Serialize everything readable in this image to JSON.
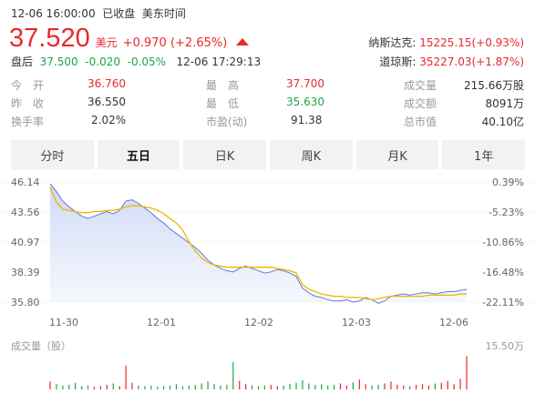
{
  "header": {
    "datetime": "12-06 16:00:00",
    "status": "已收盘",
    "timezone": "美东时间",
    "price": "37.520",
    "currency": "美元",
    "change": "+0.970 (+2.65%)",
    "after_label": "盘后",
    "after_price": "37.500",
    "after_change": "-0.020",
    "after_pct": "-0.05%",
    "after_time": "12-06 17:29:13"
  },
  "indices": [
    {
      "label": "纳斯达克:",
      "value": "15225.15(+0.93%)"
    },
    {
      "label": "道琼斯:",
      "value": "35227.03(+1.87%)"
    }
  ],
  "stats": {
    "open_label": "今　开",
    "open": "36.760",
    "prev_label": "昨　收",
    "prev": "36.550",
    "turnover_label": "换手率",
    "turnover": "2.02%",
    "high_label": "最　高",
    "high": "37.700",
    "low_label": "最　低",
    "low": "35.630",
    "pe_label": "市盈(动)",
    "pe": "91.38",
    "volume_label": "成交量",
    "volume": "215.66万股",
    "amount_label": "成交额",
    "amount": "8091万",
    "mktcap_label": "总市值",
    "mktcap": "40.10亿"
  },
  "tabs": [
    "分时",
    "五日",
    "日K",
    "周K",
    "月K",
    "1年"
  ],
  "active_tab": "五日",
  "colors": {
    "up": "#e8282d",
    "down": "#1ba849",
    "price_line": "#5b7bd5",
    "avg_line": "#f0b400"
  },
  "volume_label": "成交量（股）",
  "volume_max": "15.50万",
  "chart_data": {
    "type": "line",
    "x_ticks": [
      "11-30",
      "12-01",
      "12-02",
      "12-03",
      "12-06"
    ],
    "y_ticks": [
      "46.14",
      "43.56",
      "40.97",
      "38.39",
      "35.80"
    ],
    "pct_ticks": [
      "0.39%",
      "-5.23%",
      "-10.86%",
      "-16.48%",
      "-22.11%"
    ],
    "ylim": [
      35.8,
      46.14
    ],
    "series": [
      {
        "values": [
          46.0,
          45.3,
          44.5,
          44.0,
          43.6,
          43.2,
          43.0,
          43.2,
          43.4,
          43.6,
          43.4,
          43.7,
          44.5,
          44.6,
          44.3,
          43.9,
          43.5,
          43.0,
          42.6,
          42.1,
          41.7,
          41.3,
          40.9,
          40.5,
          40.0,
          39.4,
          39.0,
          38.7,
          38.5,
          38.4,
          38.7,
          38.9,
          38.7,
          38.5,
          38.3,
          38.4,
          38.6,
          38.5,
          38.3,
          38.0,
          37.0,
          36.6,
          36.3,
          36.2,
          36.0,
          35.9,
          35.9,
          36.0,
          35.8,
          35.9,
          36.2,
          36.0,
          35.7,
          35.9,
          36.3,
          36.4,
          36.5,
          36.4,
          36.5,
          36.6,
          36.6,
          36.5,
          36.6,
          36.7,
          36.7,
          36.8,
          36.9
        ]
      },
      {
        "values": [
          45.7,
          44.4,
          43.8,
          43.7,
          43.6,
          43.5,
          43.5,
          43.6,
          43.6,
          43.7,
          43.7,
          43.8,
          44.0,
          44.1,
          44.1,
          44.0,
          43.9,
          43.7,
          43.4,
          43.0,
          42.6,
          42.0,
          41.0,
          40.2,
          39.6,
          39.2,
          39.0,
          38.9,
          38.8,
          38.8,
          38.8,
          38.8,
          38.8,
          38.8,
          38.8,
          38.8,
          38.7,
          38.6,
          38.5,
          38.3,
          37.3,
          36.9,
          36.7,
          36.5,
          36.4,
          36.3,
          36.3,
          36.2,
          36.2,
          36.2,
          36.1,
          36.0,
          36.1,
          36.2,
          36.3,
          36.3,
          36.3,
          36.3,
          36.3,
          36.3,
          36.4,
          36.4,
          36.4,
          36.4,
          36.4,
          36.5,
          36.5
        ]
      }
    ],
    "volume": [
      1.2,
      0.8,
      0.6,
      0.7,
      1.0,
      0.5,
      0.6,
      0.4,
      0.5,
      0.7,
      0.9,
      0.5,
      3.6,
      1.0,
      0.6,
      0.5,
      0.6,
      0.4,
      0.5,
      0.6,
      0.8,
      0.5,
      0.6,
      0.7,
      0.9,
      1.2,
      0.8,
      0.6,
      0.7,
      4.1,
      1.3,
      0.8,
      0.6,
      0.5,
      0.6,
      0.7,
      0.5,
      0.6,
      0.8,
      1.0,
      1.4,
      0.9,
      0.7,
      0.8,
      0.6,
      0.7,
      0.9,
      0.6,
      1.1,
      1.5,
      0.8,
      0.6,
      0.7,
      0.9,
      1.2,
      0.7,
      0.6,
      0.5,
      0.7,
      0.8,
      0.6,
      0.9,
      1.0,
      1.3,
      0.8,
      1.6,
      5.0
    ],
    "grid": true
  }
}
